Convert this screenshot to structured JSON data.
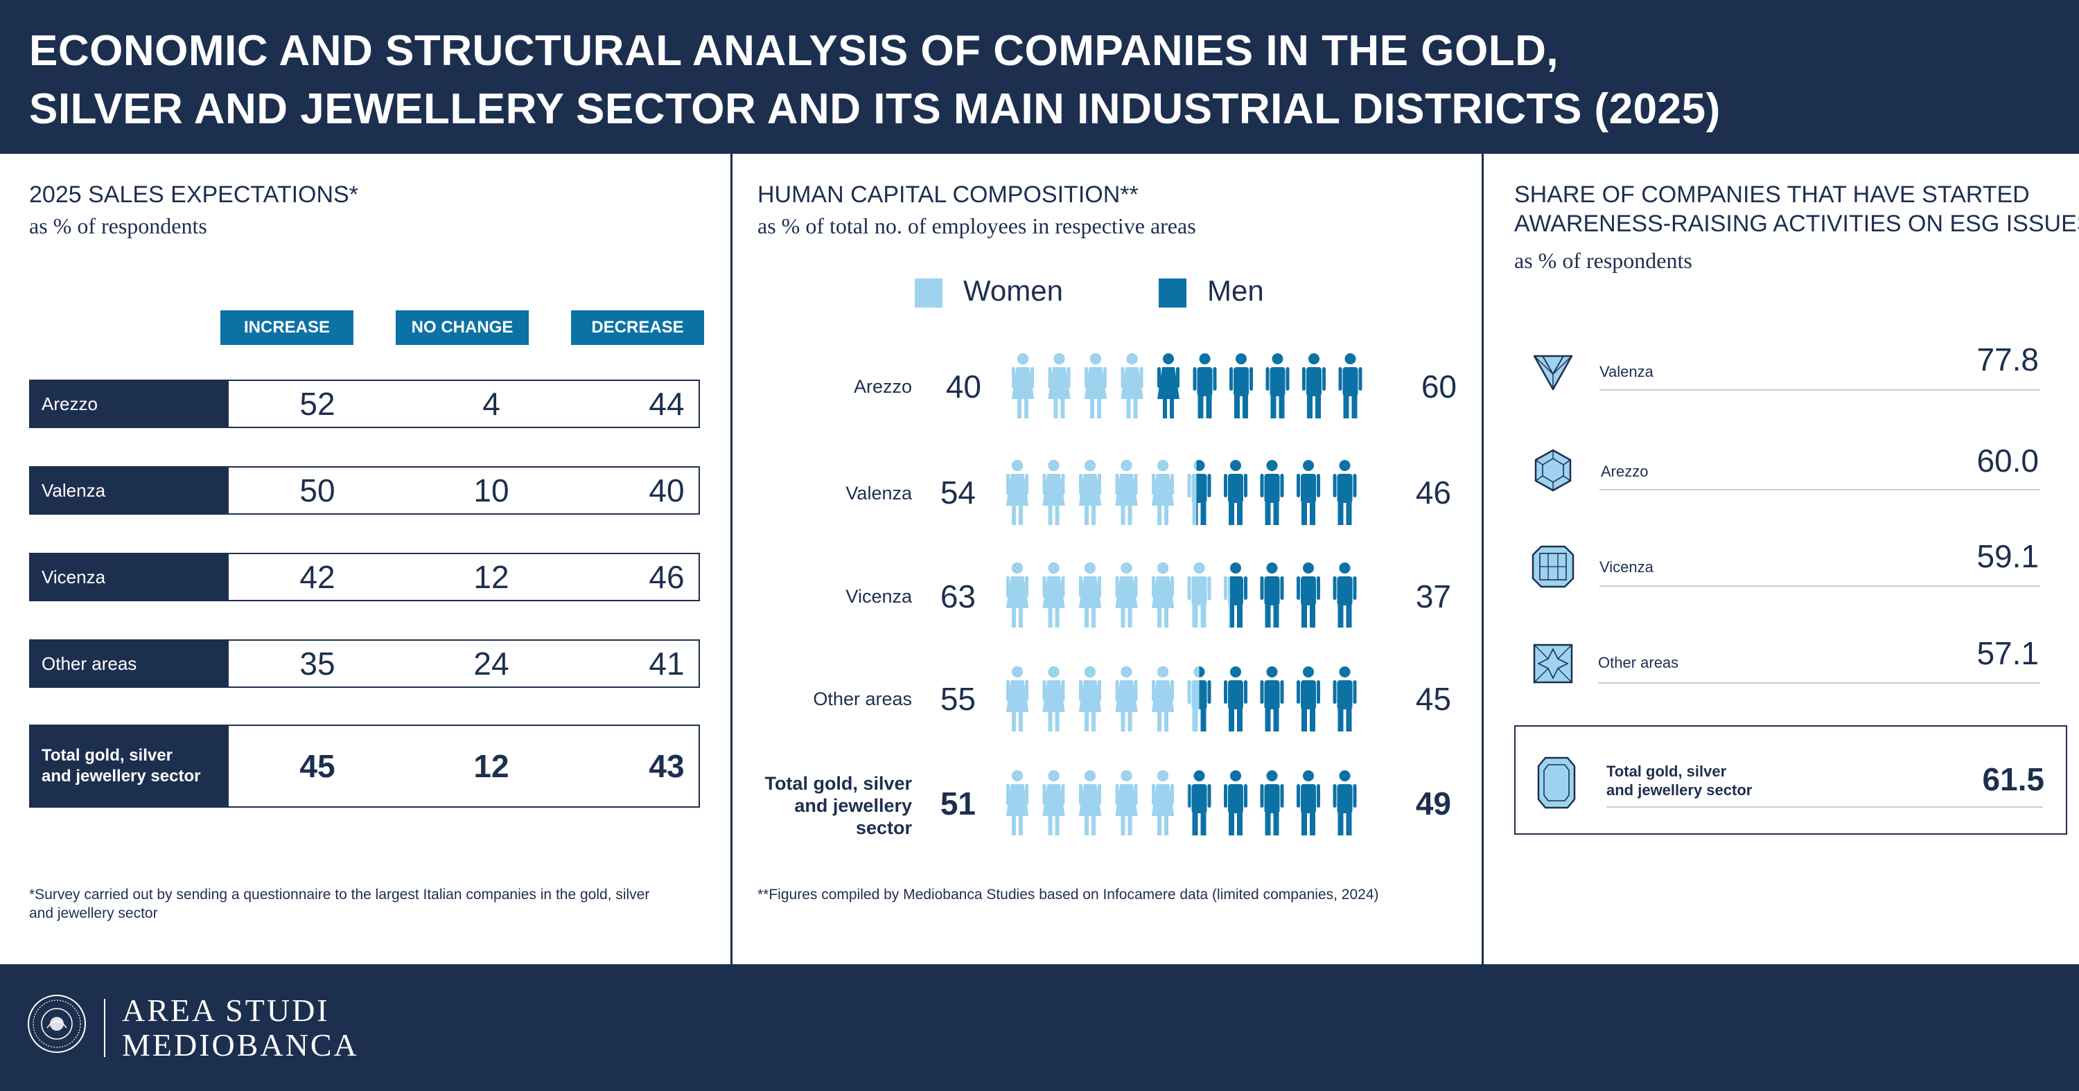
{
  "header": {
    "title_line1": "ECONOMIC AND STRUCTURAL ANALYSIS OF COMPANIES IN THE GOLD,",
    "title_line2": "SILVER AND JEWELLERY SECTOR AND ITS MAIN INDUSTRIAL DISTRICTS (2025)"
  },
  "footer": {
    "logo_line1": "AREA STUDI",
    "logo_line2": "MEDIOBANCA"
  },
  "colors": {
    "navy": "#1d2f4f",
    "accent_blue": "#0c72a6",
    "women_light_blue": "#9dd3ef",
    "men_blue": "#0c72a6"
  },
  "chart_data": [
    {
      "type": "table",
      "title": "2025 SALES EXPECTATIONS*",
      "subtitle": "as % of respondents",
      "columns": [
        "INCREASE",
        "NO CHANGE",
        "DECREASE"
      ],
      "rows": [
        {
          "label": "Arezzo",
          "values": [
            52,
            4,
            44
          ]
        },
        {
          "label": "Valenza",
          "values": [
            50,
            10,
            40
          ]
        },
        {
          "label": "Vicenza",
          "values": [
            42,
            12,
            46
          ]
        },
        {
          "label": "Other areas",
          "values": [
            35,
            24,
            41
          ]
        },
        {
          "label": "Total gold, silver and jewellery sector",
          "label_lines": [
            "Total gold, silver",
            "and jewellery sector"
          ],
          "values": [
            45,
            12,
            43
          ]
        }
      ],
      "note": "*Survey carried out by sending a questionnaire to the largest Italian companies in the gold, silver and jewellery sector"
    },
    {
      "type": "bar",
      "title": "HUMAN CAPITAL COMPOSITION**",
      "subtitle": "as % of total no. of employees in respective areas",
      "legend": [
        "Women",
        "Men"
      ],
      "categories": [
        "Arezzo",
        "Valenza",
        "Vicenza",
        "Other areas",
        "Total gold, silver and jewellery sector"
      ],
      "category_lines": [
        [
          "Arezzo"
        ],
        [
          "Valenza"
        ],
        [
          "Vicenza"
        ],
        [
          "Other areas"
        ],
        [
          "Total gold, silver",
          "and jewellery",
          "sector"
        ]
      ],
      "series": [
        {
          "name": "Women",
          "values": [
            40,
            54,
            63,
            55,
            51
          ]
        },
        {
          "name": "Men",
          "values": [
            60,
            46,
            37,
            45,
            49
          ]
        }
      ],
      "note": "**Figures compiled by Mediobanca Studies based on Infocamere data (limited companies, 2024)"
    },
    {
      "type": "bar",
      "title_line1": "SHARE OF COMPANIES THAT HAVE STARTED",
      "title_line2": "AWARENESS-RAISING ACTIVITIES ON ESG ISSUES*",
      "subtitle": "as % of respondents",
      "categories": [
        "Valenza",
        "Arezzo",
        "Vicenza",
        "Other areas"
      ],
      "values": [
        77.8,
        60.0,
        59.1,
        57.1
      ],
      "value_labels": [
        "77.8",
        "60.0",
        "59.1",
        "57.1"
      ],
      "icons": [
        "diamond-trillion-icon",
        "diamond-hexagon-icon",
        "diamond-emerald-icon",
        "diamond-star-icon"
      ],
      "total": {
        "label_lines": [
          "Total gold, silver",
          "and jewellery sector"
        ],
        "value": 61.5,
        "value_label": "61.5",
        "icon": "gem-icon"
      }
    }
  ]
}
